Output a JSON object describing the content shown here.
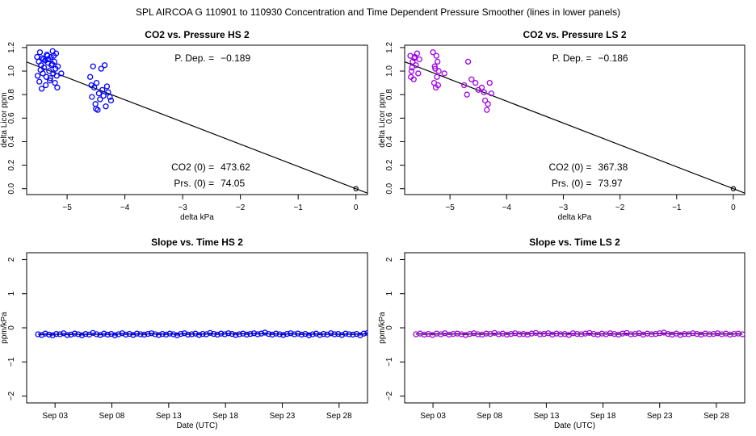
{
  "figure_title": "SPL   AIRCOA G   110901 to 110930   Concentration and Time Dependent Pressure Smoother (lines in lower panels)",
  "chart_data": [
    {
      "id": "p1",
      "type": "scatter",
      "title": "CO2 vs. Pressure HS 2",
      "xlabel": "delta kPa",
      "ylabel": "delta Licor ppm",
      "xlim": [
        -5.7,
        0.2
      ],
      "ylim": [
        -0.05,
        1.22
      ],
      "xticks": [
        -5,
        -4,
        -3,
        -2,
        -1,
        0
      ],
      "xtick_labels": [
        "−5",
        "−4",
        "−3",
        "−2",
        "−1",
        "0"
      ],
      "yticks": [
        0.0,
        0.2,
        0.4,
        0.6,
        0.8,
        1.0,
        1.2
      ],
      "ytick_labels": [
        "0.0",
        "0.2",
        "0.4",
        "0.6",
        "0.8",
        "1.0",
        "1.2"
      ],
      "color": "#0000ff",
      "fit_line": {
        "x": [
          -5.7,
          0.25
        ],
        "y": [
          1.0773,
          -0.0473
        ]
      },
      "origin_point": [
        0,
        0
      ],
      "annotations": {
        "pdep_label": "P. Dep. =",
        "pdep_value": "−0.189",
        "co2_label": "CO2 (0) =",
        "co2_value": "473.62",
        "prs_label": "Prs. (0) =",
        "prs_value": "74.05"
      },
      "points": [
        [
          -5.52,
          1.12
        ],
        [
          -5.49,
          1.08
        ],
        [
          -5.47,
          1.16
        ],
        [
          -5.45,
          1.05
        ],
        [
          -5.43,
          1.11
        ],
        [
          -5.42,
          0.98
        ],
        [
          -5.4,
          1.03
        ],
        [
          -5.38,
          1.09
        ],
        [
          -5.36,
          0.95
        ],
        [
          -5.35,
          1.14
        ],
        [
          -5.33,
          1.07
        ],
        [
          -5.31,
          1.0
        ],
        [
          -5.3,
          0.92
        ],
        [
          -5.28,
          1.12
        ],
        [
          -5.27,
          1.05
        ],
        [
          -5.25,
          1.17
        ],
        [
          -5.24,
          0.98
        ],
        [
          -5.22,
          1.08
        ],
        [
          -5.21,
          0.9
        ],
        [
          -5.2,
          1.02
        ],
        [
          -5.19,
          1.15
        ],
        [
          -5.18,
          0.96
        ],
        [
          -5.16,
          1.04
        ],
        [
          -5.51,
          0.96
        ],
        [
          -5.48,
          0.91
        ],
        [
          -5.46,
          1.01
        ],
        [
          -5.41,
          1.1
        ],
        [
          -5.37,
          0.88
        ],
        [
          -5.34,
          1.13
        ],
        [
          -5.29,
          0.94
        ],
        [
          -5.26,
          1.06
        ],
        [
          -5.23,
          1.13
        ],
        [
          -5.17,
          0.86
        ],
        [
          -5.1,
          0.98
        ],
        [
          -5.44,
          0.85
        ],
        [
          -5.32,
          1.1
        ],
        [
          -4.6,
          0.95
        ],
        [
          -4.57,
          0.78
        ],
        [
          -4.55,
          1.04
        ],
        [
          -4.53,
          0.86
        ],
        [
          -4.51,
          0.72
        ],
        [
          -4.49,
          0.9
        ],
        [
          -4.47,
          0.67
        ],
        [
          -4.45,
          0.81
        ],
        [
          -4.43,
          0.76
        ],
        [
          -4.41,
          1.02
        ],
        [
          -4.39,
          0.84
        ],
        [
          -4.37,
          0.79
        ],
        [
          -4.35,
          1.05
        ],
        [
          -4.33,
          0.7
        ],
        [
          -4.31,
          0.87
        ],
        [
          -4.29,
          0.82
        ],
        [
          -4.26,
          0.78
        ],
        [
          -4.24,
          0.75
        ],
        [
          -4.58,
          0.88
        ],
        [
          -4.5,
          0.68
        ]
      ]
    },
    {
      "id": "p2",
      "type": "scatter",
      "title": "CO2 vs. Pressure LS 2",
      "xlabel": "delta kPa",
      "ylabel": "delta Licor ppm",
      "xlim": [
        -5.8,
        0.2
      ],
      "ylim": [
        -0.05,
        1.22
      ],
      "xticks": [
        -5,
        -4,
        -3,
        -2,
        -1,
        0
      ],
      "xtick_labels": [
        "−5",
        "−4",
        "−3",
        "−2",
        "−1",
        "0"
      ],
      "yticks": [
        0.0,
        0.2,
        0.4,
        0.6,
        0.8,
        1.0,
        1.2
      ],
      "ytick_labels": [
        "0.0",
        "0.2",
        "0.4",
        "0.6",
        "0.8",
        "1.0",
        "1.2"
      ],
      "color": "#a000e6",
      "fit_line": {
        "x": [
          -5.8,
          0.25
        ],
        "y": [
          1.0788,
          -0.0465
        ]
      },
      "origin_point": [
        0,
        0
      ],
      "annotations": {
        "pdep_label": "P. Dep. =",
        "pdep_value": "−0.186",
        "co2_label": "CO2 (0) =",
        "co2_value": "367.38",
        "prs_label": "Prs. (0) =",
        "prs_value": "73.97"
      },
      "points": [
        [
          -5.7,
          1.13
        ],
        [
          -5.68,
          1.0
        ],
        [
          -5.66,
          1.08
        ],
        [
          -5.64,
          0.93
        ],
        [
          -5.62,
          1.12
        ],
        [
          -5.6,
          1.05
        ],
        [
          -5.58,
          1.15
        ],
        [
          -5.56,
          0.98
        ],
        [
          -5.54,
          1.1
        ],
        [
          -5.69,
          0.95
        ],
        [
          -5.67,
          1.03
        ],
        [
          -5.63,
          1.11
        ],
        [
          -5.3,
          1.16
        ],
        [
          -5.28,
          0.9
        ],
        [
          -5.26,
          1.02
        ],
        [
          -5.25,
          0.86
        ],
        [
          -5.24,
          1.13
        ],
        [
          -5.23,
          0.95
        ],
        [
          -5.22,
          1.08
        ],
        [
          -5.21,
          0.88
        ],
        [
          -5.2,
          1.0
        ],
        [
          -5.27,
          1.04
        ],
        [
          -5.1,
          0.98
        ],
        [
          -4.75,
          0.88
        ],
        [
          -4.7,
          0.8
        ],
        [
          -4.68,
          1.08
        ],
        [
          -4.62,
          0.93
        ],
        [
          -4.55,
          0.9
        ],
        [
          -4.5,
          0.84
        ],
        [
          -4.44,
          0.86
        ],
        [
          -4.4,
          0.82
        ],
        [
          -4.38,
          0.75
        ],
        [
          -4.35,
          0.67
        ],
        [
          -4.3,
          0.9
        ],
        [
          -4.27,
          0.81
        ],
        [
          -4.33,
          0.72
        ]
      ]
    },
    {
      "id": "p3",
      "type": "line",
      "title": "Slope vs. Time HS 2",
      "xlabel": "Date (UTC)",
      "ylabel": "ppm/kPa",
      "xlim": [
        0,
        30
      ],
      "ylim": [
        -2.2,
        2.2
      ],
      "xticks": [
        2.5,
        7.5,
        12.5,
        17.5,
        22.5,
        27.5
      ],
      "xtick_labels": [
        "Sep 03",
        "Sep 08",
        "Sep 13",
        "Sep 18",
        "Sep 23",
        "Sep 28"
      ],
      "yticks": [
        -2,
        -1,
        0,
        1,
        2
      ],
      "ytick_labels": [
        "−2",
        "−1",
        "0",
        "1",
        "2"
      ],
      "color": "#0000ff",
      "x_start": 1.0,
      "x_end": 30.0,
      "values": [
        -0.19,
        -0.21,
        -0.17,
        -0.2,
        -0.22,
        -0.18,
        -0.19,
        -0.16,
        -0.21,
        -0.2,
        -0.17,
        -0.19,
        -0.22,
        -0.18,
        -0.2,
        -0.15,
        -0.19,
        -0.21,
        -0.17,
        -0.2,
        -0.18,
        -0.22,
        -0.19,
        -0.16,
        -0.2,
        -0.18,
        -0.21,
        -0.17,
        -0.19,
        -0.2,
        -0.18,
        -0.16,
        -0.19,
        -0.21,
        -0.18,
        -0.2,
        -0.17,
        -0.19,
        -0.22,
        -0.18,
        -0.16,
        -0.2,
        -0.19,
        -0.17,
        -0.21,
        -0.18,
        -0.19,
        -0.15,
        -0.18,
        -0.2,
        -0.17,
        -0.19,
        -0.16,
        -0.18,
        -0.21,
        -0.19,
        -0.17,
        -0.2,
        -0.18,
        -0.16,
        -0.19,
        -0.17,
        -0.14,
        -0.18,
        -0.2,
        -0.17,
        -0.19,
        -0.21,
        -0.18,
        -0.16,
        -0.19,
        -0.17,
        -0.2,
        -0.18,
        -0.22,
        -0.19,
        -0.17,
        -0.21,
        -0.18,
        -0.2,
        -0.16,
        -0.19,
        -0.18,
        -0.21,
        -0.17,
        -0.19,
        -0.2,
        -0.18,
        -0.22,
        -0.17,
        -0.15
      ],
      "smoother": [
        -0.19,
        -0.19,
        -0.19,
        -0.18,
        -0.18,
        -0.18,
        -0.18,
        -0.17,
        -0.18,
        -0.18,
        -0.19,
        -0.18
      ]
    },
    {
      "id": "p4",
      "type": "line",
      "title": "Slope vs. Time LS 2",
      "xlabel": "Date (UTC)",
      "ylabel": "ppm/kPa",
      "xlim": [
        0,
        30
      ],
      "ylim": [
        -2.2,
        2.2
      ],
      "xticks": [
        2.5,
        7.5,
        12.5,
        17.5,
        22.5,
        27.5
      ],
      "xtick_labels": [
        "Sep 03",
        "Sep 08",
        "Sep 13",
        "Sep 18",
        "Sep 23",
        "Sep 28"
      ],
      "yticks": [
        -2,
        -1,
        0,
        1,
        2
      ],
      "ytick_labels": [
        "−2",
        "−1",
        "0",
        "1",
        "2"
      ],
      "color": "#a000e6",
      "x_start": 1.0,
      "x_end": 29.8,
      "values": [
        -0.19,
        -0.17,
        -0.2,
        -0.18,
        -0.21,
        -0.17,
        -0.19,
        -0.16,
        -0.2,
        -0.18,
        -0.17,
        -0.19,
        -0.21,
        -0.18,
        -0.16,
        -0.19,
        -0.2,
        -0.17,
        -0.18,
        -0.15,
        -0.19,
        -0.17,
        -0.2,
        -0.18,
        -0.16,
        -0.19,
        -0.18,
        -0.2,
        -0.17,
        -0.15,
        -0.19,
        -0.18,
        -0.16,
        -0.2,
        -0.17,
        -0.19,
        -0.18,
        -0.21,
        -0.16,
        -0.18,
        -0.19,
        -0.17,
        -0.15,
        -0.18,
        -0.2,
        -0.17,
        -0.19,
        -0.16,
        -0.18,
        -0.2,
        -0.17,
        -0.15,
        -0.19,
        -0.18,
        -0.16,
        -0.2,
        -0.17,
        -0.19,
        -0.18,
        -0.16,
        -0.14,
        -0.18,
        -0.2,
        -0.17,
        -0.21,
        -0.18,
        -0.19,
        -0.16,
        -0.18,
        -0.2,
        -0.17,
        -0.19,
        -0.18,
        -0.16,
        -0.19,
        -0.17,
        -0.2,
        -0.18,
        -0.17,
        -0.19
      ],
      "smoother": [
        -0.18,
        -0.18,
        -0.18,
        -0.18,
        -0.17,
        -0.17,
        -0.18,
        -0.18,
        -0.18,
        -0.17,
        -0.17,
        -0.18,
        -0.18
      ]
    }
  ]
}
